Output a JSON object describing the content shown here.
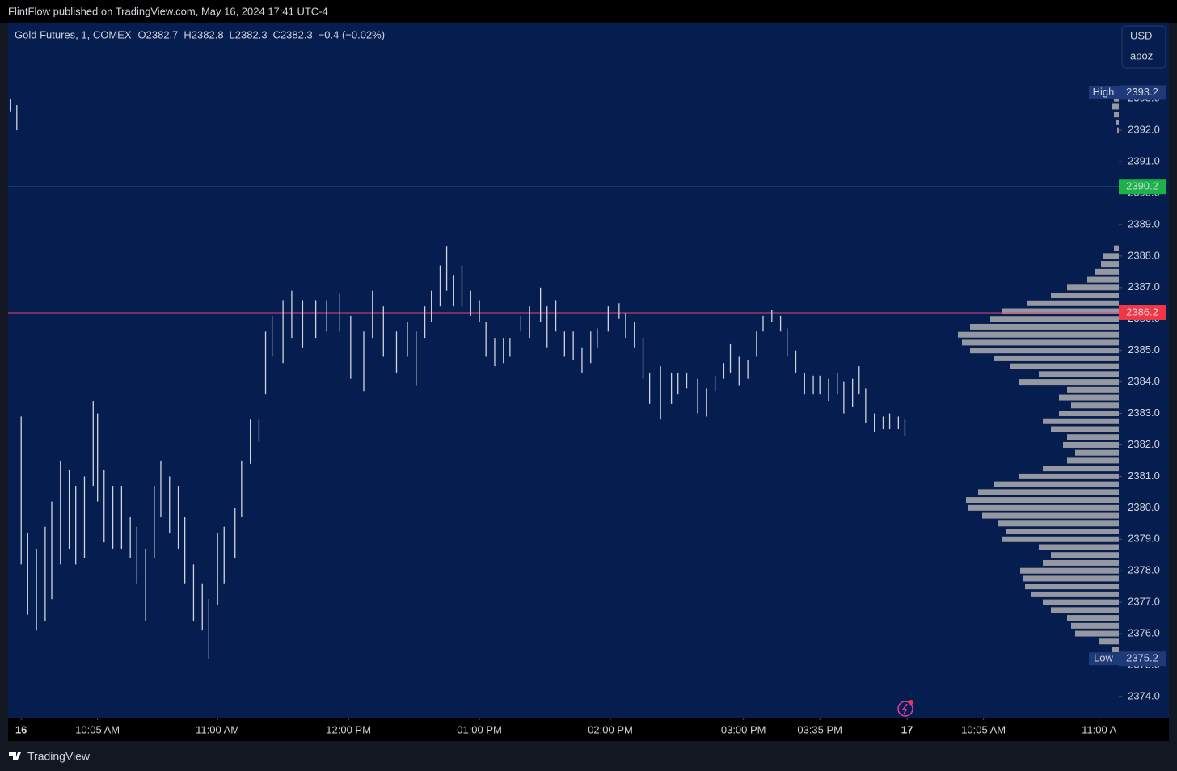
{
  "header": {
    "text": "FlintFlow published on TradingView.com, May 16, 2024 17:41 UTC-4"
  },
  "footer": {
    "brand": "TradingView"
  },
  "scale_box": {
    "currency": "USD",
    "profile_name": "apoz"
  },
  "chart_data": {
    "type": "range-bar",
    "symbol": "Gold Futures, 1, COMEX",
    "legend": [
      {
        "label": "O",
        "value": 2382.7
      },
      {
        "label": "H",
        "value": 2382.8
      },
      {
        "label": "L",
        "value": 2382.3
      },
      {
        "label": "C",
        "value": 2382.3
      }
    ],
    "change": {
      "value": -0.4,
      "label": "−0.4 (−0.02%)"
    },
    "color": "#d1d4dc",
    "x": [
      1,
      4,
      6,
      9,
      13,
      17,
      20,
      24,
      28,
      31,
      35,
      39,
      41,
      44,
      48,
      52,
      56,
      59,
      63,
      67,
      70,
      74,
      78,
      81,
      85,
      89,
      92,
      96,
      99,
      104,
      107,
      111,
      115,
      118,
      121,
      126,
      130,
      135,
      141,
      146,
      152,
      157,
      163,
      167,
      172,
      178,
      183,
      187,
      191,
      194,
      198,
      201,
      204,
      208,
      212,
      216,
      219,
      223,
      227,
      230,
      235,
      239,
      244,
      247,
      251,
      255,
      259,
      263,
      267,
      270,
      275,
      280,
      283,
      287,
      291,
      294,
      299,
      304,
      307,
      311,
      316,
      320,
      324,
      328,
      331,
      335,
      339,
      343,
      346,
      350,
      354,
      357,
      361,
      365,
      369,
      372,
      376,
      380,
      383,
      387,
      390,
      393,
      397,
      401,
      404,
      408,
      411
    ],
    "high": [
      2393.0,
      2392.8,
      2382.9,
      2379.2,
      2378.7,
      2379.4,
      2380.2,
      2381.5,
      2381.2,
      2380.7,
      2381.0,
      2383.4,
      2383.0,
      2381.2,
      2380.7,
      2380.7,
      2379.7,
      2379.4,
      2378.7,
      2380.7,
      2381.5,
      2381.0,
      2380.7,
      2379.7,
      2378.2,
      2377.6,
      2377.1,
      2379.2,
      2379.4,
      2380.0,
      2381.5,
      2382.8,
      2382.8,
      2385.6,
      2386.1,
      2386.6,
      2386.9,
      2386.6,
      2386.6,
      2386.6,
      2386.8,
      2386.1,
      2385.6,
      2386.9,
      2386.4,
      2385.6,
      2385.9,
      2385.6,
      2386.4,
      2386.9,
      2387.7,
      2388.3,
      2387.4,
      2387.7,
      2386.9,
      2386.6,
      2385.9,
      2385.4,
      2385.4,
      2385.4,
      2386.1,
      2386.4,
      2387.0,
      2386.4,
      2386.6,
      2385.6,
      2385.6,
      2385.1,
      2385.6,
      2385.7,
      2386.4,
      2386.5,
      2386.2,
      2385.9,
      2385.4,
      2384.3,
      2384.5,
      2384.3,
      2384.3,
      2384.3,
      2384.1,
      2383.8,
      2384.2,
      2384.6,
      2385.2,
      2384.8,
      2384.7,
      2385.6,
      2386.1,
      2386.3,
      2386.1,
      2385.7,
      2385.0,
      2384.3,
      2384.2,
      2384.2,
      2384.1,
      2384.3,
      2384.0,
      2384.1,
      2384.5,
      2383.8,
      2383.0,
      2382.9,
      2383.0,
      2382.9,
      2382.8
    ],
    "low": [
      2392.6,
      2392.0,
      2378.2,
      2376.6,
      2376.1,
      2376.4,
      2377.1,
      2378.2,
      2378.7,
      2378.2,
      2378.4,
      2380.7,
      2380.2,
      2378.9,
      2378.7,
      2378.7,
      2378.4,
      2377.6,
      2376.4,
      2378.4,
      2379.7,
      2379.2,
      2378.7,
      2377.6,
      2376.4,
      2376.1,
      2375.2,
      2376.9,
      2377.6,
      2378.4,
      2379.7,
      2381.4,
      2382.1,
      2383.6,
      2384.8,
      2384.6,
      2385.4,
      2385.1,
      2385.4,
      2385.6,
      2385.6,
      2384.1,
      2383.7,
      2385.4,
      2384.8,
      2384.3,
      2384.8,
      2383.9,
      2385.4,
      2385.9,
      2386.4,
      2386.9,
      2386.4,
      2386.4,
      2386.1,
      2385.9,
      2384.8,
      2384.5,
      2384.6,
      2384.8,
      2385.6,
      2385.4,
      2385.9,
      2385.1,
      2385.6,
      2384.8,
      2384.7,
      2384.3,
      2384.6,
      2385.1,
      2385.6,
      2386.0,
      2385.4,
      2385.1,
      2384.1,
      2383.3,
      2382.8,
      2383.3,
      2383.6,
      2383.8,
      2383.0,
      2382.9,
      2383.7,
      2384.1,
      2384.3,
      2383.9,
      2384.1,
      2384.8,
      2385.6,
      2385.9,
      2385.6,
      2384.8,
      2384.3,
      2383.6,
      2383.6,
      2383.6,
      2383.4,
      2383.6,
      2383.0,
      2383.2,
      2383.6,
      2382.7,
      2382.4,
      2382.5,
      2382.5,
      2382.5,
      2382.3
    ],
    "xlim": [
      0,
      509
    ],
    "xticks": [
      {
        "value": 6,
        "label": "16"
      },
      {
        "value": 41,
        "label": "10:05 AM"
      },
      {
        "value": 96,
        "label": "11:00 AM"
      },
      {
        "value": 156,
        "label": "12:00 PM"
      },
      {
        "value": 216,
        "label": "01:00 PM"
      },
      {
        "value": 276,
        "label": "02:00 PM"
      },
      {
        "value": 337,
        "label": "03:00 PM"
      },
      {
        "value": 372,
        "label": "03:35 PM"
      },
      {
        "value": 412,
        "label": "17"
      },
      {
        "value": 447,
        "label": "10:05 AM"
      },
      {
        "value": 500,
        "label": "11:00 A"
      }
    ],
    "ylim": [
      2373.33,
      2395.42
    ],
    "yticks": [
      {
        "value": 2374,
        "label": "2374.0"
      },
      {
        "value": 2375,
        "label": "2375.0"
      },
      {
        "value": 2376,
        "label": "2376.0"
      },
      {
        "value": 2377,
        "label": "2377.0"
      },
      {
        "value": 2378,
        "label": "2378.0"
      },
      {
        "value": 2379,
        "label": "2379.0"
      },
      {
        "value": 2380,
        "label": "2380.0"
      },
      {
        "value": 2381,
        "label": "2381.0"
      },
      {
        "value": 2382,
        "label": "2382.0"
      },
      {
        "value": 2383,
        "label": "2383.0"
      },
      {
        "value": 2384,
        "label": "2384.0"
      },
      {
        "value": 2385,
        "label": "2385.0"
      },
      {
        "value": 2386,
        "label": "2386.0"
      },
      {
        "value": 2387,
        "label": "2387.0"
      },
      {
        "value": 2388,
        "label": "2388.0"
      },
      {
        "value": 2389,
        "label": "2389.0"
      },
      {
        "value": 2390,
        "label": "2390.0"
      },
      {
        "value": 2391,
        "label": "2391.0"
      },
      {
        "value": 2392,
        "label": "2392.0"
      },
      {
        "value": 2393,
        "label": "2393.0"
      }
    ],
    "hlines": [
      {
        "value": 2390.2,
        "color": "#26a69a",
        "label_color": "#1bb24a"
      },
      {
        "value": 2386.2,
        "color": "#e0457b",
        "label_color": "#f23645"
      }
    ],
    "markers": [
      {
        "label": "High",
        "value": 2393.2,
        "color": "#1e3a78"
      },
      {
        "label": "Low",
        "value": 2375.2,
        "color": "#1e3a78"
      }
    ],
    "profile": {
      "color": "#9598a1",
      "xlim": [
        0,
        200
      ],
      "prices": [
        2375.25,
        2375.5,
        2375.75,
        2376.0,
        2376.25,
        2376.5,
        2376.75,
        2377.0,
        2377.25,
        2377.5,
        2377.75,
        2378.0,
        2378.25,
        2378.5,
        2378.75,
        2379.0,
        2379.25,
        2379.5,
        2379.75,
        2380.0,
        2380.25,
        2380.5,
        2380.75,
        2381.0,
        2381.25,
        2381.5,
        2381.75,
        2382.0,
        2382.25,
        2382.5,
        2382.75,
        2383.0,
        2383.25,
        2383.5,
        2383.75,
        2384.0,
        2384.25,
        2384.5,
        2384.75,
        2385.0,
        2385.25,
        2385.5,
        2385.75,
        2386.0,
        2386.25,
        2386.5,
        2386.75,
        2387.0,
        2387.25,
        2387.5,
        2387.75,
        2388.0,
        2388.25,
        2392.0,
        2392.25,
        2392.5,
        2392.75,
        2393.0
      ],
      "volumes": [
        6,
        9,
        24,
        54,
        59,
        64,
        84,
        94,
        109,
        116,
        119,
        122,
        94,
        84,
        99,
        144,
        139,
        149,
        169,
        186,
        189,
        174,
        154,
        124,
        94,
        64,
        54,
        69,
        64,
        84,
        94,
        74,
        59,
        74,
        64,
        124,
        99,
        134,
        154,
        184,
        194,
        199,
        184,
        159,
        144,
        114,
        84,
        64,
        39,
        29,
        22,
        19,
        6,
        2,
        4,
        6,
        8,
        6
      ]
    }
  }
}
